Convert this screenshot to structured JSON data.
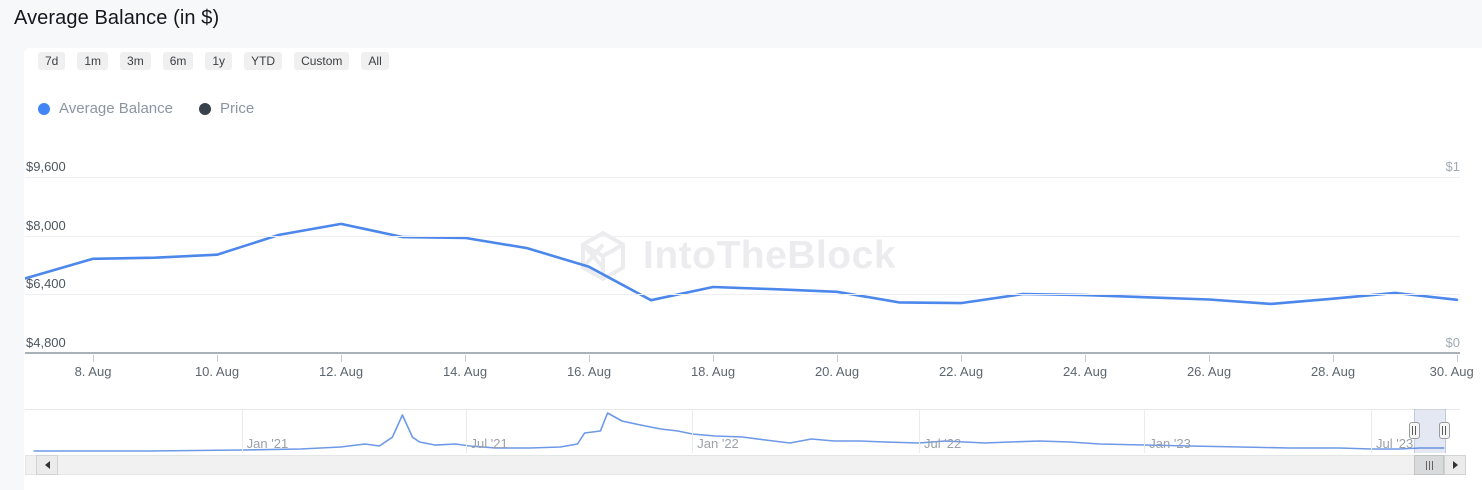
{
  "header": {
    "title": "Average Balance (in $)"
  },
  "toolbar": {
    "ranges": [
      "7d",
      "1m",
      "3m",
      "6m",
      "1y",
      "YTD",
      "Custom",
      "All"
    ]
  },
  "legend": {
    "items": [
      {
        "label": "Average Balance",
        "color": "#4285f4"
      },
      {
        "label": "Price",
        "color": "#37424d"
      }
    ]
  },
  "watermark": {
    "text": "IntoTheBlock",
    "logo": "intotheblock-cube-icon"
  },
  "chart_data": [
    {
      "type": "line",
      "title": "Average Balance (in $)",
      "x_tick_labels": [
        "8. Aug",
        "10. Aug",
        "12. Aug",
        "14. Aug",
        "16. Aug",
        "18. Aug",
        "20. Aug",
        "22. Aug",
        "24. Aug",
        "26. Aug",
        "28. Aug",
        "30. Aug"
      ],
      "y_axis_left": {
        "tick_labels": [
          "$9,600",
          "$8,000",
          "$6,400",
          "$4,800"
        ],
        "tick_values": [
          9600,
          8000,
          6400,
          4800
        ],
        "min": 4800,
        "max": 9600
      },
      "y_axis_right": {
        "tick_labels": [
          "$1",
          "$0"
        ],
        "tick_values": [
          1,
          0
        ],
        "min": 0,
        "max": 1,
        "series": "Price",
        "note": "no visible Price line in selected range"
      },
      "grid": "horizontal",
      "series": [
        {
          "name": "Average Balance",
          "color": "#4c87ec",
          "x": [
            "Aug 7",
            "Aug 8",
            "Aug 9",
            "Aug 10",
            "Aug 11",
            "Aug 12",
            "Aug 13",
            "Aug 14",
            "Aug 15",
            "Aug 16",
            "Aug 17",
            "Aug 18",
            "Aug 19",
            "Aug 20",
            "Aug 21",
            "Aug 22",
            "Aug 23",
            "Aug 24",
            "Aug 25",
            "Aug 26",
            "Aug 27",
            "Aug 28",
            "Aug 29",
            "Aug 30"
          ],
          "values": [
            6880,
            7370,
            7400,
            7480,
            8020,
            8320,
            7960,
            7940,
            7660,
            7150,
            6240,
            6600,
            6540,
            6470,
            6180,
            6160,
            6410,
            6380,
            6320,
            6260,
            6140,
            6280,
            6440,
            6250
          ]
        }
      ]
    },
    {
      "type": "line",
      "role": "navigator",
      "name": "Average Balance (full history)",
      "color": "#6e98e8",
      "x_range": [
        "Jul '20",
        "Aug '23"
      ],
      "x_ticks": [
        {
          "label": "Jan '21",
          "t": 0.151
        },
        {
          "label": "Jul '21",
          "t": 0.307
        },
        {
          "label": "Jan '22",
          "t": 0.465
        },
        {
          "label": "Jul '22",
          "t": 0.623
        },
        {
          "label": "Jan '23",
          "t": 0.78
        },
        {
          "label": "Jul '23",
          "t": 0.938
        }
      ],
      "note": "navigator y-axis unlabeled; v = relative height 0-100",
      "points": [
        [
          0.006,
          4.5
        ],
        [
          0.087,
          4.5
        ],
        [
          0.151,
          6.8
        ],
        [
          0.192,
          9
        ],
        [
          0.22,
          13.6
        ],
        [
          0.237,
          20.5
        ],
        [
          0.247,
          15.9
        ],
        [
          0.256,
          36
        ],
        [
          0.263,
          86.4
        ],
        [
          0.27,
          36
        ],
        [
          0.275,
          25
        ],
        [
          0.286,
          18
        ],
        [
          0.3,
          20.5
        ],
        [
          0.31,
          15.9
        ],
        [
          0.328,
          11.4
        ],
        [
          0.352,
          11.4
        ],
        [
          0.373,
          13.6
        ],
        [
          0.385,
          20.5
        ],
        [
          0.39,
          45.5
        ],
        [
          0.401,
          50
        ],
        [
          0.406,
          90.9
        ],
        [
          0.416,
          72.7
        ],
        [
          0.429,
          63.6
        ],
        [
          0.443,
          54.5
        ],
        [
          0.455,
          50
        ],
        [
          0.465,
          43.2
        ],
        [
          0.481,
          38.6
        ],
        [
          0.5,
          36.4
        ],
        [
          0.516,
          29.5
        ],
        [
          0.533,
          22.7
        ],
        [
          0.548,
          31.8
        ],
        [
          0.564,
          27.3
        ],
        [
          0.582,
          27.3
        ],
        [
          0.599,
          25
        ],
        [
          0.623,
          22.7
        ],
        [
          0.641,
          27.3
        ],
        [
          0.655,
          25
        ],
        [
          0.669,
          22.7
        ],
        [
          0.686,
          25
        ],
        [
          0.707,
          27.3
        ],
        [
          0.728,
          25
        ],
        [
          0.749,
          20.5
        ],
        [
          0.78,
          18.2
        ],
        [
          0.812,
          15.9
        ],
        [
          0.847,
          13.6
        ],
        [
          0.881,
          11.4
        ],
        [
          0.916,
          11.4
        ],
        [
          0.938,
          9.1
        ],
        [
          0.958,
          9.1
        ],
        [
          0.972,
          11.4
        ],
        [
          0.989,
          11.4
        ]
      ],
      "selection": {
        "t_from": 0.968,
        "t_to": 0.989
      }
    }
  ]
}
